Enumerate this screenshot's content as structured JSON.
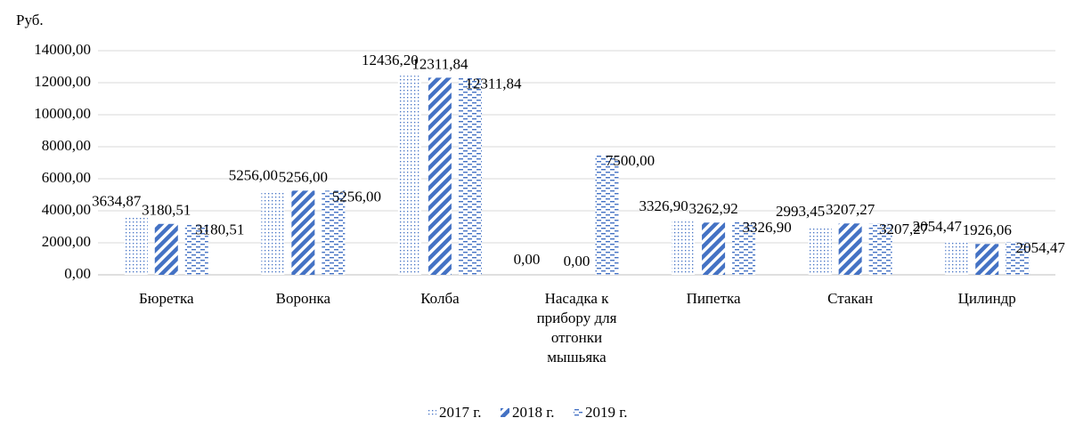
{
  "chart_data": {
    "type": "bar",
    "y_label": "Руб.",
    "categories": [
      "Бюретка",
      "Воронка",
      "Колба",
      "Насадка к прибору для отгонки мышьяка",
      "Пипетка",
      "Стакан",
      "Цилиндр"
    ],
    "series": [
      {
        "name": "2017 г.",
        "color": "#4472c4",
        "pattern": "dots",
        "values": [
          3634.87,
          5256.0,
          12436.2,
          0.0,
          3326.9,
          2993.45,
          2054.47
        ],
        "value_labels": [
          "3634,87",
          "5256,00",
          "12436,20",
          "0,00",
          "3326,90",
          "2993,45",
          "2054,47"
        ]
      },
      {
        "name": "2018 г.",
        "color": "#4472c4",
        "pattern": "diagonal",
        "values": [
          3180.51,
          5256.0,
          12311.84,
          0.0,
          3262.92,
          3207.27,
          1926.06
        ],
        "value_labels": [
          "3180,51",
          "5256,00",
          "12311,84",
          "0,00",
          "3262,92",
          "3207,27",
          "1926,06"
        ]
      },
      {
        "name": "2019 г.",
        "color": "#4472c4",
        "pattern": "dashes",
        "values": [
          3180.51,
          5256.0,
          12311.84,
          7500.0,
          3326.9,
          3207.27,
          2054.47
        ],
        "value_labels": [
          "3180,51",
          "5256,00",
          "12311,84",
          "7500,00",
          "3326,90",
          "3207,27",
          "2054,47"
        ]
      }
    ],
    "ylim": [
      0,
      14000
    ],
    "yticks": [
      {
        "value": 0,
        "label": "0,00"
      },
      {
        "value": 2000,
        "label": "2000,00"
      },
      {
        "value": 4000,
        "label": "4000,00"
      },
      {
        "value": 6000,
        "label": "6000,00"
      },
      {
        "value": 8000,
        "label": "8000,00"
      },
      {
        "value": 10000,
        "label": "10000,00"
      },
      {
        "value": 12000,
        "label": "12000,00"
      },
      {
        "value": 14000,
        "label": "14000,00"
      }
    ],
    "grid": true,
    "legend": "bottom"
  }
}
